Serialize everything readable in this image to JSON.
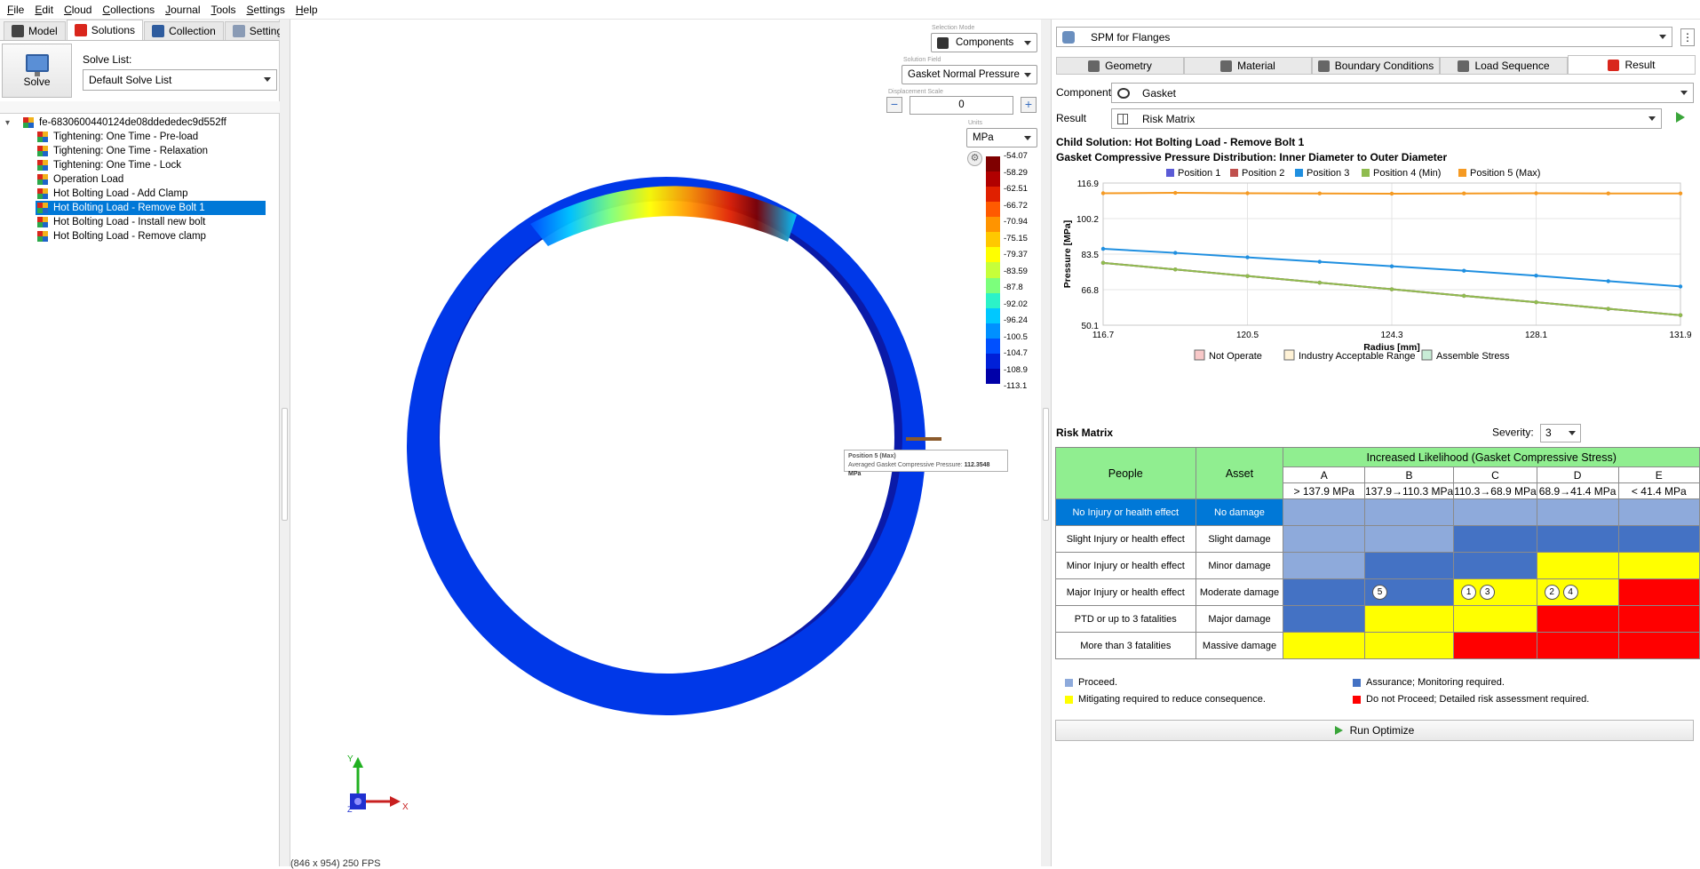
{
  "menu": [
    "File",
    "Edit",
    "Cloud",
    "Collections",
    "Journal",
    "Tools",
    "Settings",
    "Help"
  ],
  "left_tabs": [
    {
      "label": "Model",
      "icon": "model-icon"
    },
    {
      "label": "Solutions",
      "icon": "solutions-icon"
    },
    {
      "label": "Collection",
      "icon": "collection-icon"
    },
    {
      "label": "Settings",
      "icon": "gear-icon"
    }
  ],
  "solve_button": "Solve",
  "solve_list": {
    "label": "Solve List:",
    "value": "Default Solve List"
  },
  "tree": {
    "root": "fe-6830600440124de08ddededec9d552ff",
    "children": [
      "Tightening: One Time - Pre-load",
      "Tightening: One Time - Relaxation",
      "Tightening: One Time - Lock",
      "Operation Load",
      "Hot Bolting Load - Add Clamp",
      "Hot Bolting Load - Remove Bolt 1",
      "Hot Bolting Load - Install new bolt",
      "Hot Bolting Load - Remove clamp"
    ],
    "selected_index": 5
  },
  "viewport": {
    "selection_mode_label": "Selection Mode",
    "selection_mode": "Components",
    "solution_field_label": "Solution Field",
    "solution_field": "Gasket Normal Pressure",
    "displacement_scale_label": "Displacement Scale",
    "displacement_scale": "0",
    "units_label": "Units",
    "units": "MPa",
    "legend_values": [
      "-54.07",
      "-58.29",
      "-62.51",
      "-66.72",
      "-70.94",
      "-75.15",
      "-79.37",
      "-83.59",
      "-87.8",
      "-92.02",
      "-96.24",
      "-100.5",
      "-104.7",
      "-108.9",
      "-113.1"
    ],
    "legend_colors": [
      "#7f0000",
      "#b00000",
      "#e02000",
      "#ff5a00",
      "#ff9400",
      "#ffc800",
      "#ffff00",
      "#c6ff3a",
      "#7cff7c",
      "#2cf2c8",
      "#00c8ff",
      "#0090ff",
      "#0050ff",
      "#0020d8",
      "#0000a8"
    ],
    "tooltip_title": "Position 5 (Max)",
    "tooltip_label": "Averaged Gasket Compressive Pressure: ",
    "tooltip_value": "112.3548 MPa",
    "axis_y": "Y",
    "axis_x": "X",
    "axis_z": "Z",
    "fps": "(846 x 954) 250 FPS"
  },
  "right": {
    "app_combo": "SPM for Flanges",
    "tabs": [
      "Geometry",
      "Material",
      "Boundary Conditions",
      "Load Sequence",
      "Result"
    ],
    "active_tab": 4,
    "component_label": "Component",
    "component": "Gasket",
    "result_label": "Result",
    "result": "Risk Matrix",
    "child_solution": "Child Solution: Hot Bolting Load - Remove Bolt 1",
    "chart_title": "Gasket Compressive Pressure Distribution: Inner Diameter to Outer Diameter",
    "band_legend": [
      "Not Operate",
      "Industry Acceptable Range",
      "Assemble Stress"
    ],
    "band_colors": [
      "#f8c8c8",
      "#fff2d6",
      "#c8ecd6"
    ],
    "risk_matrix_title": "Risk Matrix",
    "severity_label": "Severity:",
    "severity": "3",
    "matrix": {
      "header_people": "People",
      "header_asset": "Asset",
      "header_likelihood": "Increased Likelihood (Gasket Compressive Stress)",
      "columns": [
        "A",
        "B",
        "C",
        "D",
        "E"
      ],
      "ranges": [
        "> 137.9 MPa",
        "137.9→110.3 MPa",
        "110.3→68.9 MPa",
        "68.9→41.4 MPa",
        "< 41.4 MPa"
      ],
      "rows": [
        {
          "people": "No Injury or health effect",
          "asset": "No damage",
          "cells": [
            "lb",
            "lb",
            "lb",
            "lb",
            "lb"
          ],
          "bubbles": [
            [],
            [],
            [],
            [],
            []
          ]
        },
        {
          "people": "Slight Injury or health effect",
          "asset": "Slight damage",
          "cells": [
            "lb",
            "lb",
            "db",
            "db",
            "db"
          ],
          "bubbles": [
            [],
            [],
            [],
            [],
            []
          ]
        },
        {
          "people": "Minor Injury or health effect",
          "asset": "Minor damage",
          "cells": [
            "lb",
            "db",
            "db",
            "ye",
            "ye"
          ],
          "bubbles": [
            [],
            [],
            [],
            [],
            []
          ]
        },
        {
          "people": "Major Injury or health effect",
          "asset": "Moderate damage",
          "cells": [
            "db",
            "db",
            "ye",
            "ye",
            "re"
          ],
          "bubbles": [
            [],
            [
              "5"
            ],
            [
              "1",
              "3"
            ],
            [
              "2",
              "4"
            ],
            []
          ]
        },
        {
          "people": "PTD or up to 3 fatalities",
          "asset": "Major damage",
          "cells": [
            "db",
            "ye",
            "ye",
            "re",
            "re"
          ],
          "bubbles": [
            [],
            [],
            [],
            [],
            []
          ]
        },
        {
          "people": "More than 3 fatalities",
          "asset": "Massive damage",
          "cells": [
            "ye",
            "ye",
            "re",
            "re",
            "re"
          ],
          "bubbles": [
            [],
            [],
            [],
            [],
            []
          ]
        }
      ]
    },
    "key": [
      {
        "color": "#8eaadb",
        "text": "Proceed."
      },
      {
        "color": "#4472c4",
        "text": "Assurance; Monitoring required."
      },
      {
        "color": "#ffff00",
        "text": "Mitigating required to reduce consequence."
      },
      {
        "color": "#ff0000",
        "text": "Do not Proceed; Detailed risk assessment required."
      }
    ],
    "run_button": "Run Optimize"
  },
  "chart_data": {
    "type": "line",
    "title": "",
    "xlabel": "Radius [mm]",
    "ylabel": "Pressure [MPa]",
    "xlim": [
      116.7,
      131.9
    ],
    "ylim": [
      50.1,
      116.9
    ],
    "x_ticks": [
      "116.7",
      "120.5",
      "124.3",
      "128.1",
      "131.9"
    ],
    "y_ticks": [
      "116.9",
      "100.2",
      "83.5",
      "66.8",
      "50.1"
    ],
    "x": [
      116.7,
      118.6,
      120.5,
      122.4,
      124.3,
      126.2,
      128.1,
      130.0,
      131.9
    ],
    "series": [
      {
        "name": "Position 1",
        "color": "#5b5bd6",
        "values": [
          79.4,
          76.3,
          73.2,
          70.1,
          67.0,
          63.9,
          60.9,
          57.8,
          54.8
        ]
      },
      {
        "name": "Position 2",
        "color": "#c0504d",
        "values": [
          79.4,
          76.3,
          73.2,
          70.1,
          67.0,
          63.9,
          60.9,
          57.8,
          54.8
        ]
      },
      {
        "name": "Position 3",
        "color": "#1f8fe0",
        "values": [
          86.0,
          84.1,
          82.0,
          79.9,
          77.8,
          75.7,
          73.4,
          70.8,
          68.3
        ]
      },
      {
        "name": "Position 4 (Min)",
        "color": "#8fbc4f",
        "values": [
          79.4,
          76.3,
          73.2,
          70.1,
          67.0,
          63.9,
          60.9,
          57.8,
          54.8
        ]
      },
      {
        "name": "Position 5 (Max)",
        "color": "#f59a23",
        "values": [
          112.1,
          112.3,
          112.1,
          112.0,
          111.9,
          112.0,
          112.1,
          112.0,
          112.0
        ]
      }
    ]
  }
}
